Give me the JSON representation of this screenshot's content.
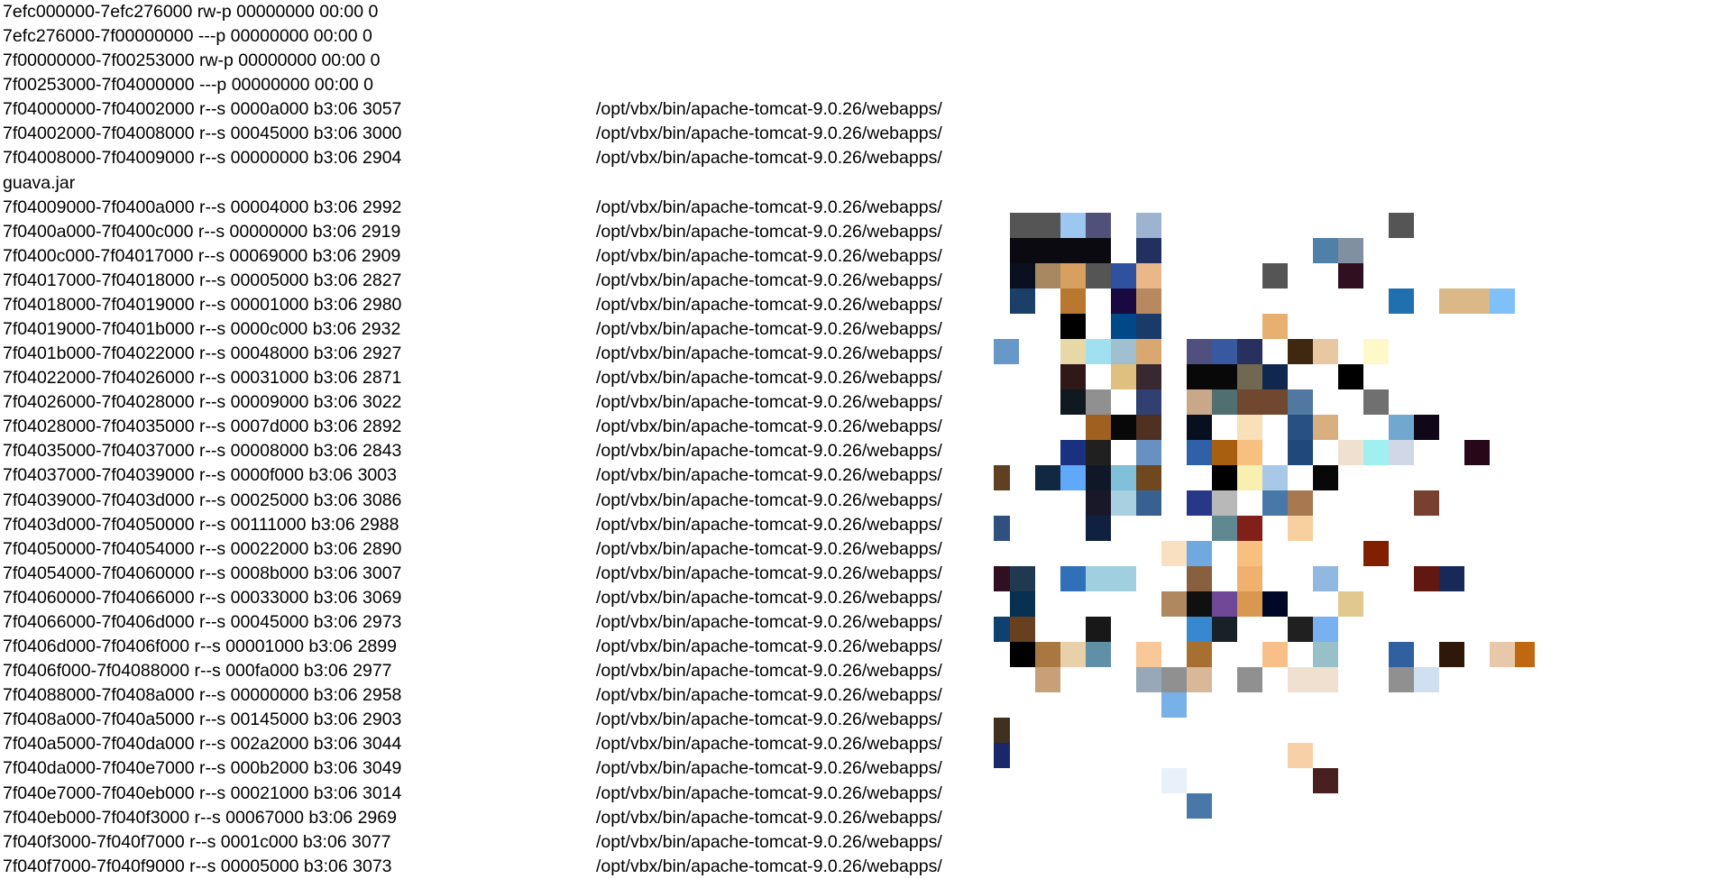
{
  "lines": [
    {
      "text": "7efc000000-7efc276000 rw-p 00000000 00:00 0"
    },
    {
      "text": "7efc276000-7f00000000 ---p 00000000 00:00 0"
    },
    {
      "text": "7f00000000-7f00253000 rw-p 00000000 00:00 0"
    },
    {
      "text": "7f00253000-7f04000000 ---p 00000000 00:00 0"
    },
    {
      "text": "7f04000000-7f04002000 r--s 0000a000 b3:06 3057",
      "path": "/opt/vbx/bin/apache-tomcat-9.0.26/webapps/"
    },
    {
      "text": "7f04002000-7f04008000 r--s 00045000 b3:06 3000",
      "path": "/opt/vbx/bin/apache-tomcat-9.0.26/webapps/"
    },
    {
      "text": "7f04008000-7f04009000 r--s 00000000 b3:06 2904",
      "path": "/opt/vbx/bin/apache-tomcat-9.0.26/webapps/"
    },
    {
      "text": "guava.jar"
    },
    {
      "text": "7f04009000-7f0400a000 r--s 00004000 b3:06 2992",
      "path": "/opt/vbx/bin/apache-tomcat-9.0.26/webapps/"
    },
    {
      "text": "7f0400a000-7f0400c000 r--s 00000000 b3:06 2919",
      "path": "/opt/vbx/bin/apache-tomcat-9.0.26/webapps/"
    },
    {
      "text": "7f0400c000-7f04017000 r--s 00069000 b3:06 2909",
      "path": "/opt/vbx/bin/apache-tomcat-9.0.26/webapps/"
    },
    {
      "text": "7f04017000-7f04018000 r--s 00005000 b3:06 2827",
      "path": "/opt/vbx/bin/apache-tomcat-9.0.26/webapps/"
    },
    {
      "text": "7f04018000-7f04019000 r--s 00001000 b3:06 2980",
      "path": "/opt/vbx/bin/apache-tomcat-9.0.26/webapps/"
    },
    {
      "text": "7f04019000-7f0401b000 r--s 0000c000 b3:06 2932",
      "path": "/opt/vbx/bin/apache-tomcat-9.0.26/webapps/"
    },
    {
      "text": "7f0401b000-7f04022000 r--s 00048000 b3:06 2927",
      "path": "/opt/vbx/bin/apache-tomcat-9.0.26/webapps/"
    },
    {
      "text": "7f04022000-7f04026000 r--s 00031000 b3:06 2871",
      "path": "/opt/vbx/bin/apache-tomcat-9.0.26/webapps/"
    },
    {
      "text": "7f04026000-7f04028000 r--s 00009000 b3:06 3022",
      "path": "/opt/vbx/bin/apache-tomcat-9.0.26/webapps/"
    },
    {
      "text": "7f04028000-7f04035000 r--s 0007d000 b3:06 2892",
      "path": "/opt/vbx/bin/apache-tomcat-9.0.26/webapps/"
    },
    {
      "text": "7f04035000-7f04037000 r--s 00008000 b3:06 2843",
      "path": "/opt/vbx/bin/apache-tomcat-9.0.26/webapps/"
    },
    {
      "text": "7f04037000-7f04039000 r--s 0000f000 b3:06 3003",
      "path": "/opt/vbx/bin/apache-tomcat-9.0.26/webapps/"
    },
    {
      "text": "7f04039000-7f0403d000 r--s 00025000 b3:06 3086",
      "path": "/opt/vbx/bin/apache-tomcat-9.0.26/webapps/"
    },
    {
      "text": "7f0403d000-7f04050000 r--s 00111000 b3:06 2988",
      "path": "/opt/vbx/bin/apache-tomcat-9.0.26/webapps/"
    },
    {
      "text": "7f04050000-7f04054000 r--s 00022000 b3:06 2890",
      "path": "/opt/vbx/bin/apache-tomcat-9.0.26/webapps/"
    },
    {
      "text": "7f04054000-7f04060000 r--s 0008b000 b3:06 3007",
      "path": "/opt/vbx/bin/apache-tomcat-9.0.26/webapps/"
    },
    {
      "text": "7f04060000-7f04066000 r--s 00033000 b3:06 3069",
      "path": "/opt/vbx/bin/apache-tomcat-9.0.26/webapps/"
    },
    {
      "text": "7f04066000-7f0406d000 r--s 00045000 b3:06 2973",
      "path": "/opt/vbx/bin/apache-tomcat-9.0.26/webapps/"
    },
    {
      "text": "7f0406d000-7f0406f000 r--s 00001000 b3:06 2899",
      "path": "/opt/vbx/bin/apache-tomcat-9.0.26/webapps/"
    },
    {
      "text": "7f0406f000-7f04088000 r--s 000fa000 b3:06 2977",
      "path": "/opt/vbx/bin/apache-tomcat-9.0.26/webapps/"
    },
    {
      "text": "7f04088000-7f0408a000 r--s 00000000 b3:06 2958",
      "path": "/opt/vbx/bin/apache-tomcat-9.0.26/webapps/"
    },
    {
      "text": "7f0408a000-7f040a5000 r--s 00145000 b3:06 2903",
      "path": "/opt/vbx/bin/apache-tomcat-9.0.26/webapps/"
    },
    {
      "text": "7f040a5000-7f040da000 r--s 002a2000 b3:06 3044",
      "path": "/opt/vbx/bin/apache-tomcat-9.0.26/webapps/"
    },
    {
      "text": "7f040da000-7f040e7000 r--s 000b2000 b3:06 3049",
      "path": "/opt/vbx/bin/apache-tomcat-9.0.26/webapps/"
    },
    {
      "text": "7f040e7000-7f040eb000 r--s 00021000 b3:06 3014",
      "path": "/opt/vbx/bin/apache-tomcat-9.0.26/webapps/"
    },
    {
      "text": "7f040eb000-7f040f3000 r--s 00067000 b3:06 2969",
      "path": "/opt/vbx/bin/apache-tomcat-9.0.26/webapps/"
    },
    {
      "text": "7f040f3000-7f040f7000 r--s 0001c000 b3:06 3077",
      "path": "/opt/vbx/bin/apache-tomcat-9.0.26/webapps/"
    },
    {
      "text": "7f040f7000-7f040f9000 r--s 00005000 b3:06 3073",
      "path": "/opt/vbx/bin/apache-tomcat-9.0.26/webapps/"
    }
  ]
}
